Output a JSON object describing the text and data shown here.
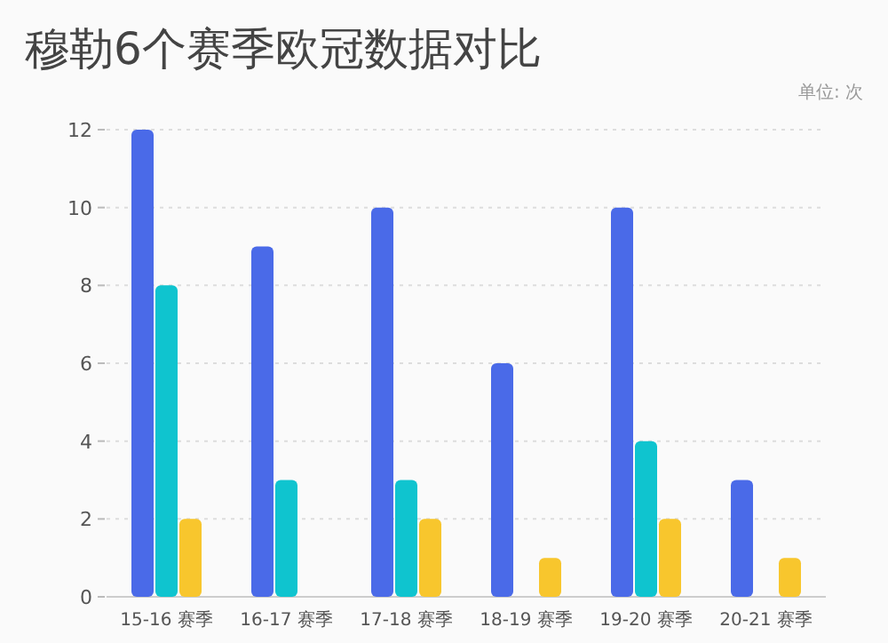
{
  "chart_data": {
    "type": "bar",
    "title": "穆勒6个赛季欧冠数据对比",
    "annotations": [
      "单位: 次"
    ],
    "categories": [
      "15-16 赛季",
      "16-17 赛季",
      "17-18 赛季",
      "18-19 赛季",
      "19-20 赛季",
      "20-21 赛季"
    ],
    "series": [
      {
        "color": "#4a6ae8",
        "values": [
          12,
          9,
          10,
          6,
          10,
          3
        ]
      },
      {
        "color": "#0fc4cf",
        "values": [
          8,
          3,
          3,
          0,
          4,
          0
        ]
      },
      {
        "color": "#f8c62d",
        "values": [
          2,
          0,
          2,
          1,
          2,
          1
        ]
      }
    ],
    "ylim": [
      0,
      12
    ],
    "yticks": [
      0,
      2,
      4,
      6,
      8,
      10,
      12
    ],
    "grid": "y"
  }
}
